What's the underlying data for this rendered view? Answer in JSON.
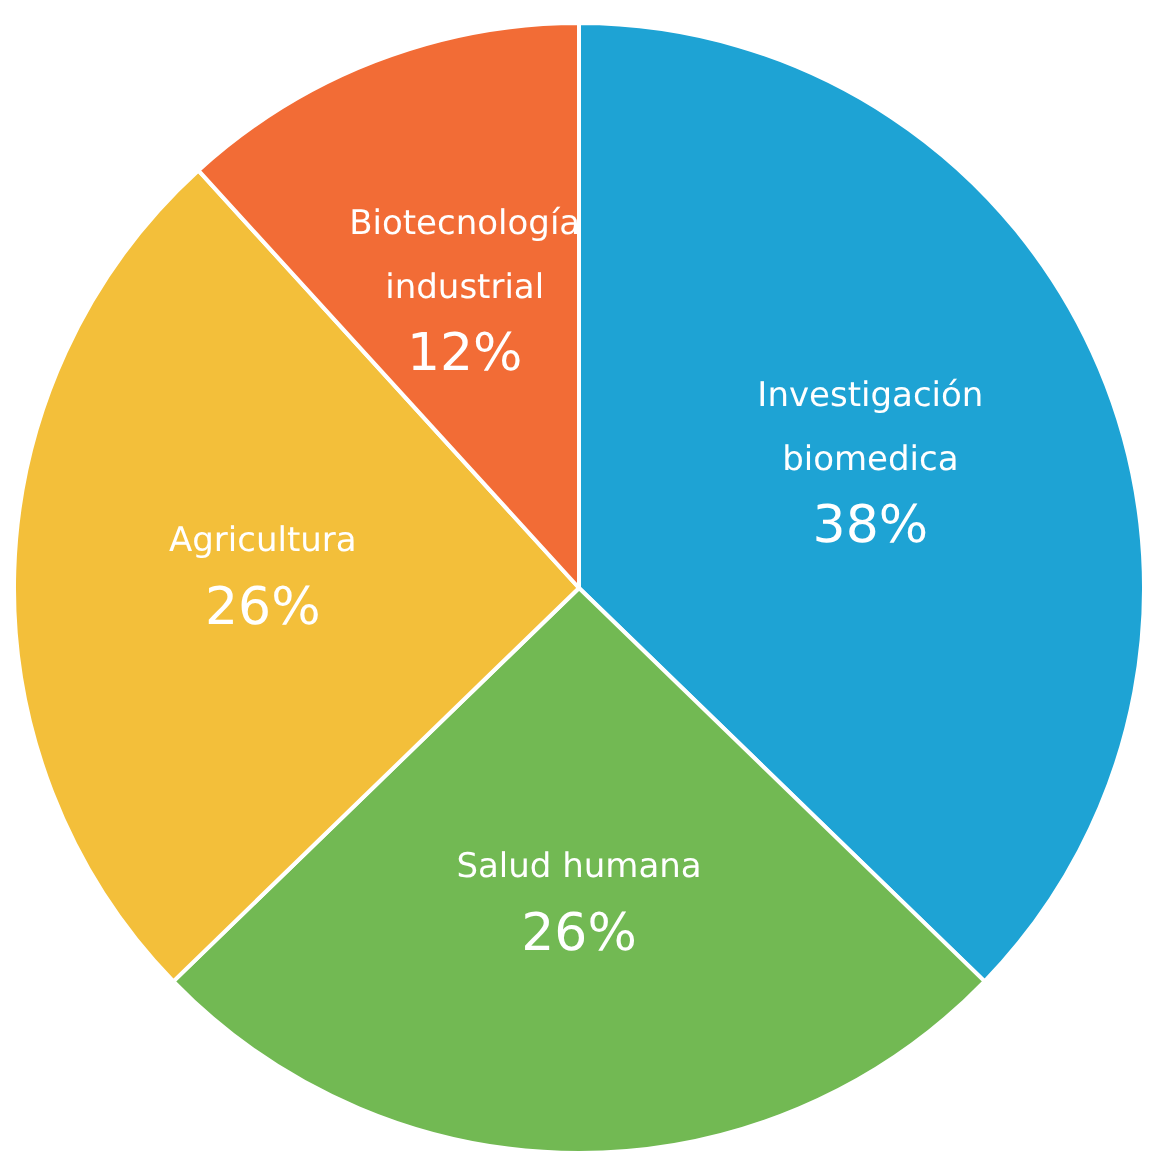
{
  "chart_data": {
    "type": "pie",
    "categories": [
      "Investigación biomedica",
      "Salud humana",
      "Agricultura",
      "Biotecnología industrial"
    ],
    "values": [
      38,
      26,
      26,
      12
    ],
    "colors": [
      "#1ea3d4",
      "#72b953",
      "#f3bf3a",
      "#f26c36"
    ],
    "value_labels": [
      "38%",
      "26%",
      "26%",
      "12%"
    ],
    "legend": false
  }
}
